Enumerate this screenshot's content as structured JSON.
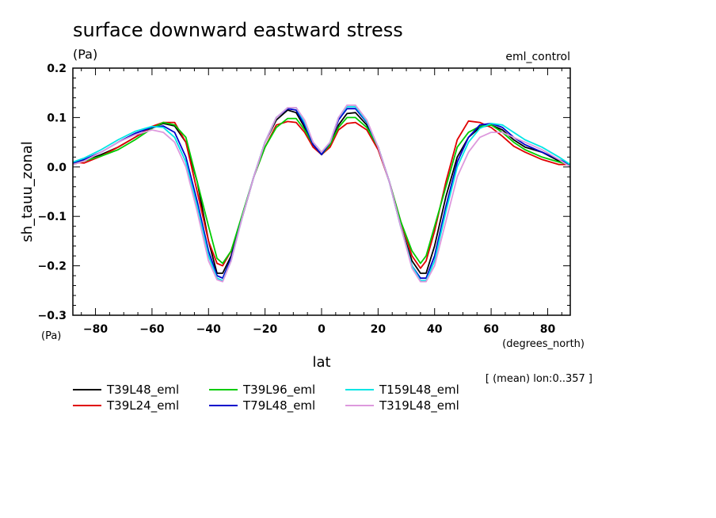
{
  "chart_data": {
    "type": "line",
    "title": "surface downward eastward stress",
    "title_unit": "(Pa)",
    "experiment": "eml_control",
    "ylabel": "sh_tauu_zonal",
    "ylabel_unit": "(Pa)",
    "xlabel": "lat",
    "xlabel_unit": "(degrees_north)",
    "note": "[ (mean) lon:0..357 ]",
    "xlim": [
      -88,
      88
    ],
    "ylim": [
      -0.3,
      0.2
    ],
    "xticks": [
      -80,
      -60,
      -40,
      -20,
      0,
      20,
      40,
      60,
      80
    ],
    "xtick_labels": [
      "−80",
      "−60",
      "−40",
      "−20",
      "0",
      "20",
      "40",
      "60",
      "80"
    ],
    "yticks": [
      -0.3,
      -0.2,
      -0.1,
      0.0,
      0.1,
      0.2
    ],
    "ytick_labels": [
      "−0.3",
      "−0.2",
      "−0.1",
      "0.0",
      "0.1",
      "0.2"
    ],
    "grid": false,
    "legend_position": "bottom",
    "series": [
      {
        "name": "T39L48_eml",
        "color": "#000000",
        "x": [
          -88,
          -84,
          -78,
          -72,
          -66,
          -60,
          -56,
          -52,
          -48,
          -44,
          -40,
          -37,
          -35,
          -32,
          -28,
          -24,
          -20,
          -16,
          -12,
          -9,
          -6,
          -3,
          0,
          3,
          6,
          9,
          12,
          16,
          20,
          24,
          28,
          32,
          35,
          37,
          40,
          44,
          48,
          52,
          56,
          60,
          64,
          68,
          72,
          78,
          84,
          88
        ],
        "y": [
          0.005,
          0.012,
          0.025,
          0.04,
          0.06,
          0.08,
          0.088,
          0.083,
          0.05,
          -0.03,
          -0.15,
          -0.215,
          -0.215,
          -0.18,
          -0.1,
          -0.02,
          0.05,
          0.095,
          0.115,
          0.11,
          0.08,
          0.045,
          0.025,
          0.045,
          0.085,
          0.108,
          0.11,
          0.085,
          0.04,
          -0.03,
          -0.12,
          -0.19,
          -0.215,
          -0.215,
          -0.16,
          -0.06,
          0.02,
          0.06,
          0.08,
          0.085,
          0.075,
          0.055,
          0.04,
          0.03,
          0.012,
          0.005
        ]
      },
      {
        "name": "T39L24_eml",
        "color": "#e00000",
        "x": [
          -88,
          -84,
          -78,
          -72,
          -66,
          -60,
          -56,
          -52,
          -48,
          -44,
          -40,
          -37,
          -35,
          -32,
          -28,
          -24,
          -20,
          -16,
          -12,
          -9,
          -6,
          -3,
          0,
          3,
          6,
          9,
          12,
          16,
          20,
          24,
          28,
          32,
          35,
          37,
          40,
          44,
          48,
          52,
          56,
          60,
          64,
          68,
          72,
          78,
          84,
          88
        ],
        "y": [
          0.01,
          0.008,
          0.022,
          0.04,
          0.06,
          0.082,
          0.09,
          0.09,
          0.05,
          -0.05,
          -0.15,
          -0.195,
          -0.2,
          -0.17,
          -0.1,
          -0.02,
          0.04,
          0.085,
          0.092,
          0.09,
          0.07,
          0.04,
          0.025,
          0.04,
          0.075,
          0.088,
          0.09,
          0.075,
          0.035,
          -0.03,
          -0.11,
          -0.18,
          -0.205,
          -0.19,
          -0.13,
          -0.03,
          0.055,
          0.093,
          0.09,
          0.08,
          0.062,
          0.042,
          0.03,
          0.015,
          0.005,
          0.005
        ]
      },
      {
        "name": "T39L96_eml",
        "color": "#00cc00",
        "x": [
          -88,
          -84,
          -78,
          -72,
          -66,
          -60,
          -56,
          -52,
          -48,
          -44,
          -40,
          -37,
          -35,
          -32,
          -28,
          -24,
          -20,
          -16,
          -12,
          -9,
          -6,
          -3,
          0,
          3,
          6,
          9,
          12,
          16,
          20,
          24,
          28,
          32,
          35,
          37,
          40,
          44,
          48,
          52,
          56,
          60,
          64,
          68,
          72,
          78,
          84,
          88
        ],
        "y": [
          0.008,
          0.012,
          0.022,
          0.035,
          0.055,
          0.078,
          0.09,
          0.085,
          0.06,
          -0.03,
          -0.12,
          -0.185,
          -0.195,
          -0.17,
          -0.095,
          -0.02,
          0.04,
          0.08,
          0.098,
          0.098,
          0.075,
          0.045,
          0.025,
          0.045,
          0.08,
          0.1,
          0.1,
          0.08,
          0.04,
          -0.03,
          -0.11,
          -0.17,
          -0.195,
          -0.18,
          -0.12,
          -0.04,
          0.04,
          0.07,
          0.082,
          0.085,
          0.07,
          0.05,
          0.035,
          0.02,
          0.01,
          0.005
        ]
      },
      {
        "name": "T79L48_eml",
        "color": "#0000cc",
        "x": [
          -88,
          -84,
          -78,
          -72,
          -66,
          -60,
          -56,
          -52,
          -48,
          -44,
          -40,
          -37,
          -35,
          -32,
          -28,
          -24,
          -20,
          -16,
          -12,
          -9,
          -6,
          -3,
          0,
          3,
          6,
          9,
          12,
          16,
          20,
          24,
          28,
          32,
          35,
          37,
          40,
          44,
          48,
          52,
          56,
          60,
          64,
          68,
          72,
          78,
          84,
          88
        ],
        "y": [
          0.008,
          0.015,
          0.03,
          0.05,
          0.068,
          0.08,
          0.083,
          0.07,
          0.02,
          -0.07,
          -0.17,
          -0.22,
          -0.225,
          -0.185,
          -0.1,
          -0.02,
          0.05,
          0.1,
          0.118,
          0.115,
          0.085,
          0.045,
          0.025,
          0.05,
          0.095,
          0.118,
          0.118,
          0.09,
          0.04,
          -0.03,
          -0.12,
          -0.2,
          -0.225,
          -0.225,
          -0.18,
          -0.08,
          0.01,
          0.06,
          0.085,
          0.088,
          0.08,
          0.06,
          0.045,
          0.03,
          0.015,
          0.005
        ]
      },
      {
        "name": "T159L48_eml",
        "color": "#00e5e5",
        "x": [
          -88,
          -84,
          -78,
          -72,
          -66,
          -60,
          -56,
          -52,
          -48,
          -44,
          -40,
          -37,
          -35,
          -32,
          -28,
          -24,
          -20,
          -16,
          -12,
          -9,
          -6,
          -3,
          0,
          3,
          6,
          9,
          12,
          16,
          20,
          24,
          28,
          32,
          35,
          37,
          40,
          44,
          48,
          52,
          56,
          60,
          64,
          68,
          72,
          78,
          84,
          88
        ],
        "y": [
          0.01,
          0.018,
          0.035,
          0.055,
          0.072,
          0.082,
          0.08,
          0.06,
          0.01,
          -0.08,
          -0.18,
          -0.225,
          -0.23,
          -0.19,
          -0.1,
          -0.02,
          0.05,
          0.1,
          0.12,
          0.12,
          0.09,
          0.05,
          0.03,
          0.05,
          0.1,
          0.122,
          0.122,
          0.092,
          0.04,
          -0.03,
          -0.12,
          -0.2,
          -0.23,
          -0.23,
          -0.19,
          -0.09,
          0.0,
          0.05,
          0.078,
          0.088,
          0.085,
          0.07,
          0.055,
          0.04,
          0.02,
          0.005
        ]
      },
      {
        "name": "T319L48_eml",
        "color": "#dd99dd",
        "x": [
          -88,
          -84,
          -78,
          -72,
          -66,
          -60,
          -56,
          -52,
          -48,
          -44,
          -40,
          -37,
          -35,
          -32,
          -28,
          -24,
          -20,
          -16,
          -12,
          -9,
          -6,
          -3,
          0,
          3,
          6,
          9,
          12,
          16,
          20,
          24,
          28,
          32,
          35,
          37,
          40,
          44,
          48,
          52,
          56,
          60,
          64,
          68,
          72,
          78,
          84,
          88
        ],
        "y": [
          0.005,
          0.012,
          0.03,
          0.05,
          0.065,
          0.075,
          0.07,
          0.05,
          0.0,
          -0.09,
          -0.19,
          -0.228,
          -0.232,
          -0.19,
          -0.1,
          -0.02,
          0.05,
          0.1,
          0.12,
          0.12,
          0.095,
          0.05,
          0.03,
          0.05,
          0.1,
          0.125,
          0.125,
          0.095,
          0.04,
          -0.03,
          -0.12,
          -0.205,
          -0.232,
          -0.232,
          -0.2,
          -0.11,
          -0.02,
          0.03,
          0.06,
          0.07,
          0.07,
          0.06,
          0.05,
          0.035,
          0.015,
          0.0
        ]
      }
    ]
  }
}
